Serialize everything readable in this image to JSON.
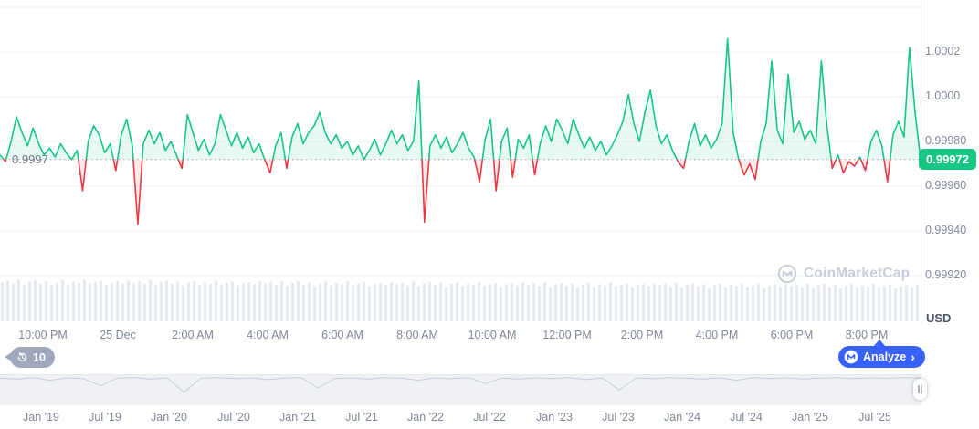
{
  "chart_data": {
    "type": "line",
    "unit": "USD",
    "current_price_label": "0.99972",
    "current_price": 0.99972,
    "threshold_label": "0.9997",
    "threshold_value": 0.99972,
    "ylim": [
      0.999,
      1.0004
    ],
    "grid": true,
    "y_ticks": [
      {
        "label": "",
        "value": 1.0004
      },
      {
        "label": "1.0002",
        "value": 1.0002
      },
      {
        "label": "1.0000",
        "value": 1.0
      },
      {
        "label": "0.99980",
        "value": 0.9998
      },
      {
        "label": "0.99960",
        "value": 0.9996
      },
      {
        "label": "0.99940",
        "value": 0.9994
      },
      {
        "label": "0.99920",
        "value": 0.9992
      }
    ],
    "x_ticks": [
      "10:00 PM",
      "25 Dec",
      "2:00 AM",
      "4:00 AM",
      "6:00 AM",
      "8:00 AM",
      "10:00 AM",
      "12:00 PM",
      "2:00 PM",
      "4:00 PM",
      "6:00 PM",
      "8:00 PM"
    ],
    "series": [
      0.99974,
      0.99971,
      0.9998,
      0.99991,
      0.99984,
      0.99978,
      0.99986,
      0.99979,
      0.99974,
      0.99977,
      0.99973,
      0.99979,
      0.99975,
      0.99972,
      0.99976,
      0.99958,
      0.9998,
      0.99987,
      0.99983,
      0.99975,
      0.99979,
      0.99967,
      0.99983,
      0.9999,
      0.99978,
      0.99943,
      0.99979,
      0.99985,
      0.99979,
      0.99984,
      0.99976,
      0.9998,
      0.99974,
      0.99968,
      0.99992,
      0.99984,
      0.99976,
      0.99981,
      0.99974,
      0.99979,
      0.99992,
      0.99985,
      0.99978,
      0.99984,
      0.99977,
      0.99982,
      0.99975,
      0.99979,
      0.99972,
      0.99966,
      0.99978,
      0.99984,
      0.99968,
      0.99982,
      0.99988,
      0.99979,
      0.99984,
      0.99987,
      0.99993,
      0.99984,
      0.99979,
      0.99983,
      0.99977,
      0.9998,
      0.99974,
      0.99978,
      0.99972,
      0.99976,
      0.99981,
      0.99974,
      0.99979,
      0.99985,
      0.99979,
      0.99983,
      0.99976,
      0.9998,
      1.00007,
      0.99944,
      0.99978,
      0.99983,
      0.99977,
      0.99982,
      0.99975,
      0.99979,
      0.99984,
      0.99977,
      0.99973,
      0.99962,
      0.99981,
      0.9999,
      0.99958,
      0.9998,
      0.99986,
      0.99964,
      0.99981,
      0.99977,
      0.99983,
      0.99965,
      0.99979,
      0.99987,
      0.9998,
      0.9999,
      0.99985,
      0.99979,
      0.9999,
      0.99983,
      0.99977,
      0.99982,
      0.99976,
      0.9998,
      0.99974,
      0.99978,
      0.99983,
      0.99989,
      1.00001,
      0.99988,
      0.9998,
      0.99993,
      1.00003,
      0.99987,
      0.99979,
      0.99983,
      0.99976,
      0.99971,
      0.99968,
      0.9998,
      0.99988,
      0.99978,
      0.99983,
      0.99977,
      0.99981,
      0.99988,
      1.00026,
      0.99984,
      0.99972,
      0.99965,
      0.9997,
      0.99963,
      0.9998,
      0.99988,
      1.00016,
      0.99985,
      0.99979,
      1.0001,
      0.99984,
      0.99989,
      0.99981,
      0.99985,
      0.99979,
      1.00016,
      0.99987,
      0.99968,
      0.99974,
      0.99966,
      0.99971,
      0.99969,
      0.99973,
      0.99967,
      0.9998,
      0.99985,
      0.99978,
      0.99962,
      0.99983,
      0.99989,
      0.99982,
      1.00022,
      0.99993,
      0.99972
    ],
    "volume_pattern": [
      0.0,
      0.04,
      -0.03,
      0.06,
      -0.05,
      0.02,
      0.05,
      -0.02,
      0.03,
      -0.06,
      0.01,
      0.05,
      -0.04,
      0.02,
      -0.01,
      0.06,
      -0.03,
      0.01,
      0.04,
      -0.05,
      0.0,
      0.03,
      -0.02,
      0.05
    ],
    "volume_base": 0.93,
    "volume_trend": 0.1,
    "minimap": [
      0.95,
      0.9,
      0.97,
      0.85,
      0.96,
      0.92,
      0.6,
      0.95,
      0.97,
      0.9,
      0.96,
      0.3,
      0.94,
      0.97,
      0.92,
      0.96,
      0.88,
      0.95,
      0.97,
      0.5,
      0.93,
      0.96,
      0.9,
      0.97,
      0.94,
      0.85,
      0.96,
      0.92,
      0.97,
      0.7,
      0.95,
      0.9,
      0.96,
      0.93,
      0.97,
      0.88,
      0.95,
      0.4,
      0.96,
      0.92,
      0.97,
      0.94,
      0.9,
      0.96,
      0.85,
      0.97,
      0.93,
      0.96,
      0.9,
      0.95,
      0.97,
      0.92,
      0.96,
      0.94,
      0.97,
      0.95
    ],
    "timeline_ticks": [
      "Jan '19",
      "Jul '19",
      "Jan '20",
      "Jul '20",
      "Jan '21",
      "Jul '21",
      "Jan '22",
      "Jul '22",
      "Jan '23",
      "Jul '23",
      "Jan '24",
      "Jul '24",
      "Jan '25",
      "Jul '25"
    ],
    "colors": {
      "up": "#16c784",
      "down": "#ea3943",
      "up_fill": "rgba(22,199,132,0.10)",
      "down_fill": "rgba(234,57,67,0.10)",
      "badge": "#16c784",
      "grid": "#eff2f5",
      "dotted": "#9aa3b5",
      "axis_text": "#808a9d",
      "volume_bar": "#e3eaf2",
      "band": "#eff1f4",
      "accent_blue": "#3861fb",
      "watermark": "#c7ceda"
    }
  },
  "history_badge": {
    "count": "10"
  },
  "analyze_button": {
    "label": "Analyze",
    "chevron": "›"
  },
  "watermark": {
    "text": "CoinMarketCap"
  }
}
